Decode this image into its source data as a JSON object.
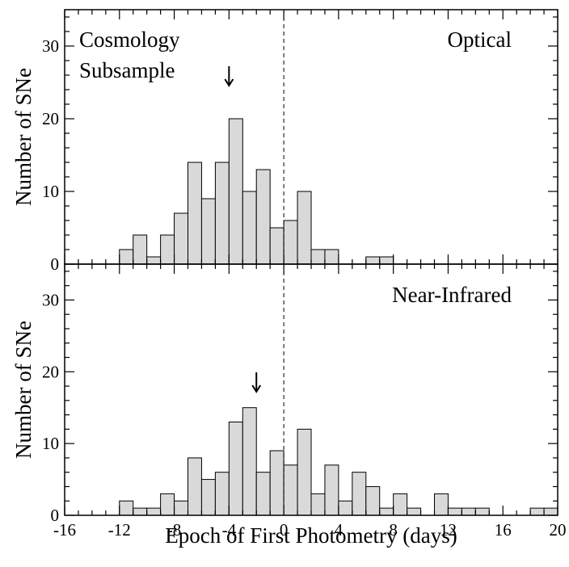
{
  "chart_data": [
    {
      "type": "bar",
      "panel": "optical",
      "annotations": [
        "Cosmology",
        "Subsample",
        "Optical"
      ],
      "ylabel": "Number of SNe",
      "xlabel": "",
      "xlim": [
        -16,
        20
      ],
      "ylim": [
        0,
        35
      ],
      "xticks": [
        -16,
        -12,
        -8,
        -4,
        0,
        4,
        8,
        12,
        16,
        20
      ],
      "yticks": [
        0,
        10,
        20,
        30
      ],
      "bin_width": 1,
      "bin_left_edges": [
        -12,
        -11,
        -10,
        -9,
        -8,
        -7,
        -6,
        -5,
        -4,
        -3,
        -2,
        -1,
        0,
        1,
        2,
        3,
        4,
        5,
        6,
        7
      ],
      "values": [
        2,
        4,
        1,
        4,
        7,
        14,
        9,
        14,
        20,
        10,
        13,
        5,
        6,
        10,
        2,
        2,
        0,
        0,
        1,
        1
      ],
      "arrow_at": -4,
      "grid": false
    },
    {
      "type": "bar",
      "panel": "near-infrared",
      "annotations": [
        "Near-Infrared"
      ],
      "ylabel": "Number of SNe",
      "xlabel": "Epoch of First Photometry (days)",
      "xlim": [
        -16,
        20
      ],
      "ylim": [
        0,
        35
      ],
      "xticks": [
        -16,
        -12,
        -8,
        -4,
        0,
        4,
        8,
        12,
        16,
        20
      ],
      "yticks": [
        0,
        10,
        20,
        30
      ],
      "bin_width": 1,
      "bin_left_edges": [
        -12,
        -11,
        -10,
        -9,
        -8,
        -7,
        -6,
        -5,
        -4,
        -3,
        -2,
        -1,
        0,
        1,
        2,
        3,
        4,
        5,
        6,
        7,
        8,
        9,
        10,
        11,
        12,
        13,
        14,
        15,
        16,
        17,
        18,
        19
      ],
      "values": [
        2,
        1,
        1,
        3,
        2,
        8,
        5,
        6,
        13,
        15,
        6,
        9,
        7,
        12,
        3,
        7,
        2,
        6,
        4,
        1,
        3,
        1,
        0,
        3,
        1,
        1,
        1,
        0,
        0,
        0,
        1,
        1
      ],
      "arrow_at": -2,
      "grid": false
    }
  ]
}
